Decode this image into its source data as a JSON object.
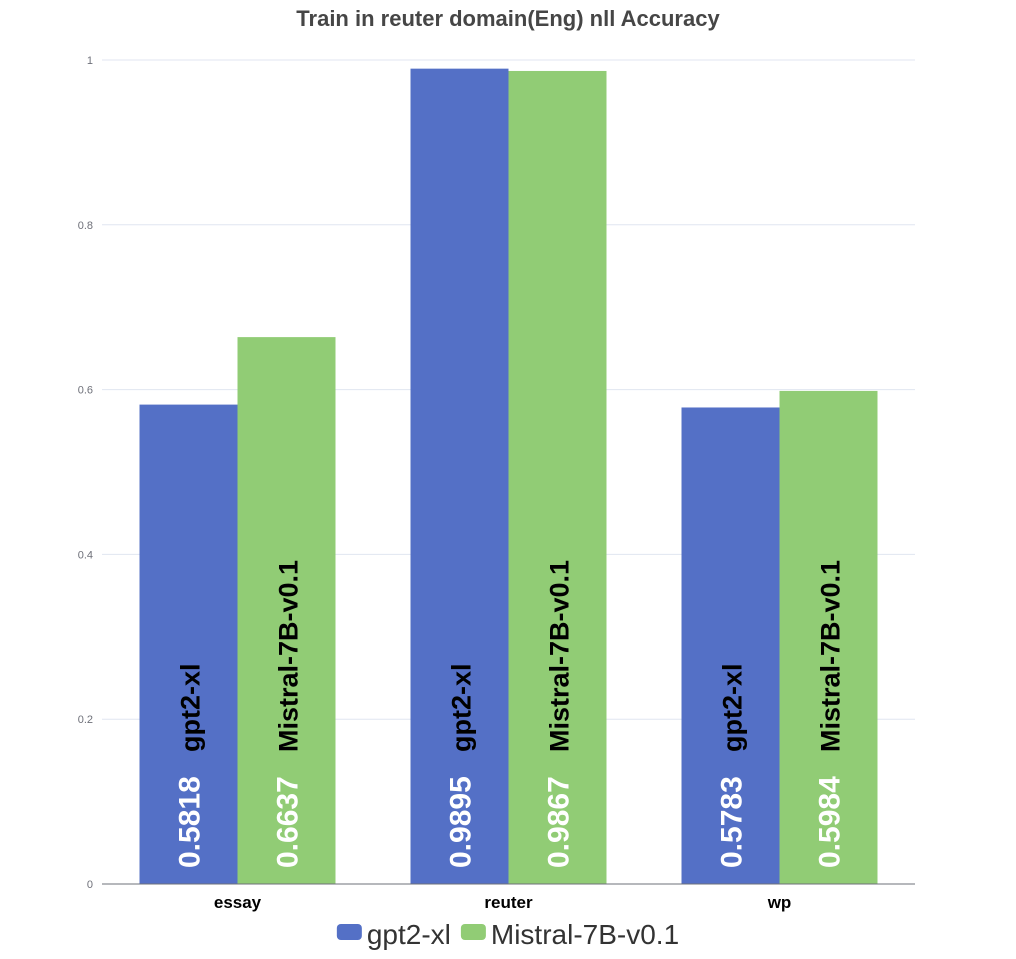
{
  "chart_data": {
    "type": "bar",
    "title": "Train in reuter domain(Eng) nll Accuracy",
    "xlabel": "",
    "ylabel": "",
    "categories": [
      "essay",
      "reuter",
      "wp"
    ],
    "series": [
      {
        "name": "gpt2-xl",
        "values": [
          0.5818,
          0.9895,
          0.5783
        ],
        "color": "#5470c6"
      },
      {
        "name": "Mistral-7B-v0.1",
        "values": [
          0.6637,
          0.9867,
          0.5984
        ],
        "color": "#91cc75"
      }
    ],
    "ylim": [
      0,
      1
    ],
    "yticks": [
      "0",
      "0.2",
      "0.4",
      "0.6",
      "0.8",
      "1"
    ],
    "grid": true,
    "legend_position": "bottom-center",
    "bar_label_value_color": "#ffffff",
    "bar_label_name_color": "#000000"
  }
}
